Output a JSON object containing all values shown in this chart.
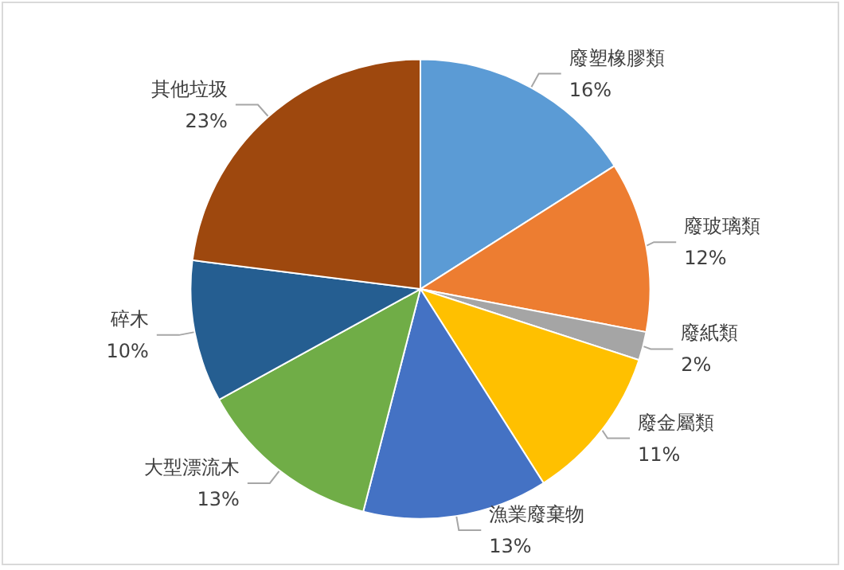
{
  "chart_data": {
    "type": "pie",
    "categories": [
      "廢塑橡膠類",
      "廢玻璃類",
      "廢紙類",
      "廢金屬類",
      "漁業廢棄物",
      "大型漂流木",
      "碎木",
      "其他垃圾"
    ],
    "values": [
      16,
      12,
      2,
      11,
      13,
      13,
      10,
      23
    ],
    "colors": [
      "#5b9bd5",
      "#ed7d31",
      "#a5a5a5",
      "#ffc000",
      "#4472c4",
      "#70ad47",
      "#255e91",
      "#9e480e"
    ],
    "value_labels": [
      "16%",
      "12%",
      "2%",
      "11%",
      "13%",
      "13%",
      "10%",
      "23%"
    ],
    "legend": false
  }
}
